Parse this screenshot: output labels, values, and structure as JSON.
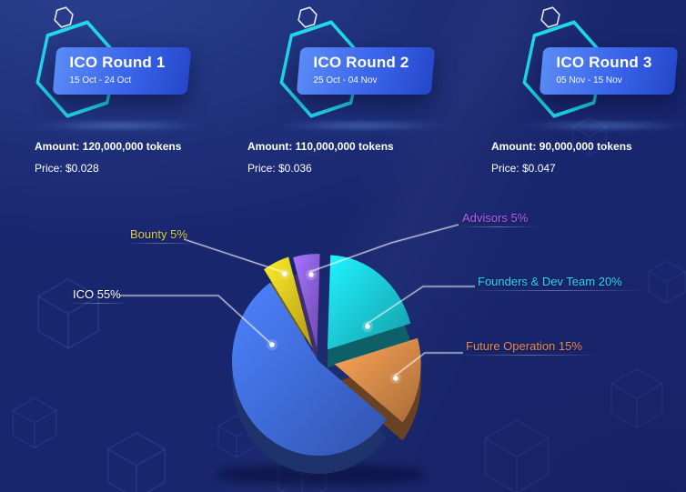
{
  "theme": {
    "background": "#18266e",
    "accent_cyan": "#1fd8e8",
    "card_gradient_start": "#5b8cf5",
    "card_gradient_mid": "#3a64ea",
    "card_gradient_end": "#2547c9",
    "text_primary": "#ffffff"
  },
  "rounds": [
    {
      "title": "ICO Round 1",
      "dates": "15 Oct - 24 Oct",
      "amount_line": "Amount: 120,000,000 tokens",
      "price_line": "Price: $0.028"
    },
    {
      "title": "ICO Round 2",
      "dates": "25 Oct - 04 Nov",
      "amount_line": "Amount: 110,000,000 tokens",
      "price_line": "Price: $0.036"
    },
    {
      "title": "ICO Round 3",
      "dates": "05 Nov - 15 Nov",
      "amount_line": "Amount: 90,000,000 tokens",
      "price_line": "Price: $0.047"
    }
  ],
  "chart_data": {
    "type": "pie",
    "unit": "%",
    "style": "3d-exploded",
    "slices": [
      {
        "name": "ICO",
        "value": 55,
        "label": "ICO 55%",
        "color": "#3f6be0",
        "label_color": "#ffffff"
      },
      {
        "name": "Bounty",
        "value": 5,
        "label": "Bounty 5%",
        "color": "#e6c41f",
        "label_color": "#ddcb4a"
      },
      {
        "name": "Advisors",
        "value": 5,
        "label": "Advisors 5%",
        "color": "#8a5fe0",
        "label_color": "#c05ce8"
      },
      {
        "name": "Founders & Dev Team",
        "value": 20,
        "label": "Founders & Dev Team 20%",
        "color": "#1bc8d8",
        "label_color": "#2fd8ea"
      },
      {
        "name": "Future Operation",
        "value": 15,
        "label": "Future Operation 15%",
        "color": "#d88948",
        "label_color": "#e88a50"
      }
    ]
  }
}
